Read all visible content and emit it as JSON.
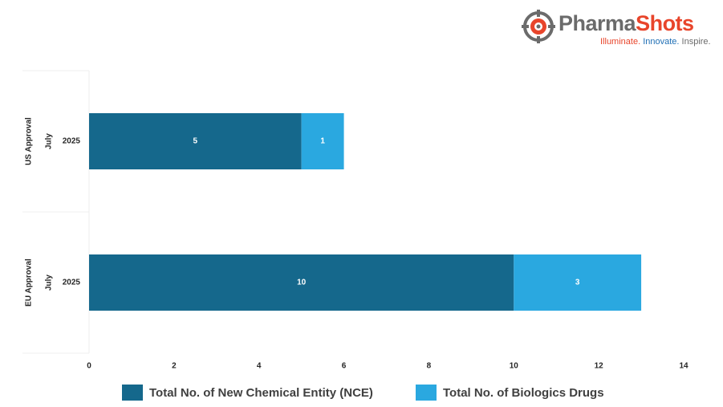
{
  "logo": {
    "name_a": "Pharma",
    "name_b": "Shots",
    "tagline_1": "Illuminate.",
    "tagline_2": "Innovate.",
    "tagline_3": "Inspire."
  },
  "colors": {
    "nce": "#15688c",
    "biologics": "#2aa8e0",
    "logo_gray": "#6b6b6b",
    "logo_red": "#e8452b"
  },
  "chart_data": {
    "type": "bar",
    "orientation": "horizontal",
    "stacked": true,
    "groups": [
      {
        "group": "US Approval",
        "month": "July",
        "year": "2025"
      },
      {
        "group": "EU Approval",
        "month": "July",
        "year": "2025"
      }
    ],
    "series": [
      {
        "name": "Total No. of New Chemical Entity (NCE)",
        "values": [
          5,
          10
        ],
        "color": "#15688c"
      },
      {
        "name": "Total No. of Biologics Drugs",
        "values": [
          1,
          3
        ],
        "color": "#2aa8e0"
      }
    ],
    "xlim": [
      0,
      14
    ],
    "xticks": [
      "0",
      "2",
      "4",
      "6",
      "8",
      "10",
      "12",
      "14"
    ],
    "grid": false,
    "legend": "bottom"
  }
}
